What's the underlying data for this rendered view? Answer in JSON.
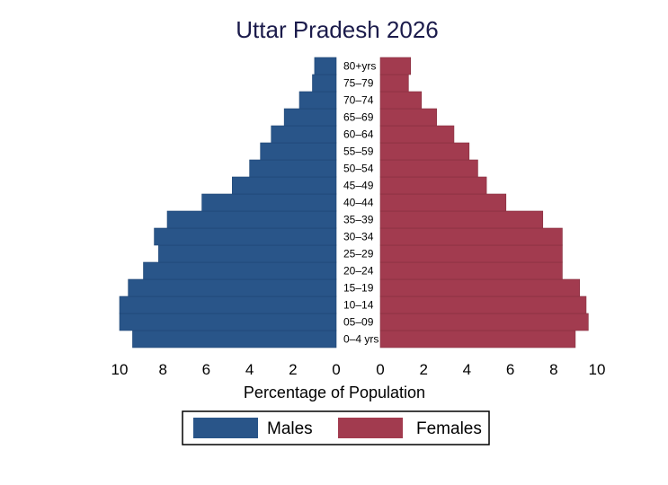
{
  "chart_data": {
    "type": "bar",
    "orientation": "horizontal",
    "subtype": "population-pyramid",
    "title": "Uttar Pradesh 2026",
    "xlabel": "Percentage of Population",
    "xlim": [
      0,
      10
    ],
    "x_ticks_left": [
      "10",
      "8",
      "6",
      "4",
      "2",
      "0"
    ],
    "x_ticks_right": [
      "0",
      "2",
      "4",
      "6",
      "8",
      "10"
    ],
    "categories": [
      "0–4 yrs",
      "05–09",
      "10–14",
      "15–19",
      "20–24",
      "25–29",
      "30–34",
      "35–39",
      "40–44",
      "45–49",
      "50–54",
      "55–59",
      "60–64",
      "65–69",
      "70–74",
      "75–79",
      "80+yrs"
    ],
    "series": [
      {
        "name": "Males",
        "color": "#295589",
        "values": [
          9.4,
          10.0,
          10.0,
          9.6,
          8.9,
          8.2,
          8.4,
          7.8,
          6.2,
          4.8,
          4.0,
          3.5,
          3.0,
          2.4,
          1.7,
          1.1,
          1.0
        ]
      },
      {
        "name": "Females",
        "color": "#a23b4f",
        "values": [
          9.0,
          9.6,
          9.5,
          9.2,
          8.4,
          8.4,
          8.4,
          7.5,
          5.8,
          4.9,
          4.5,
          4.1,
          3.4,
          2.6,
          1.9,
          1.3,
          1.4
        ]
      }
    ],
    "legend": "bottom",
    "grid": false
  }
}
